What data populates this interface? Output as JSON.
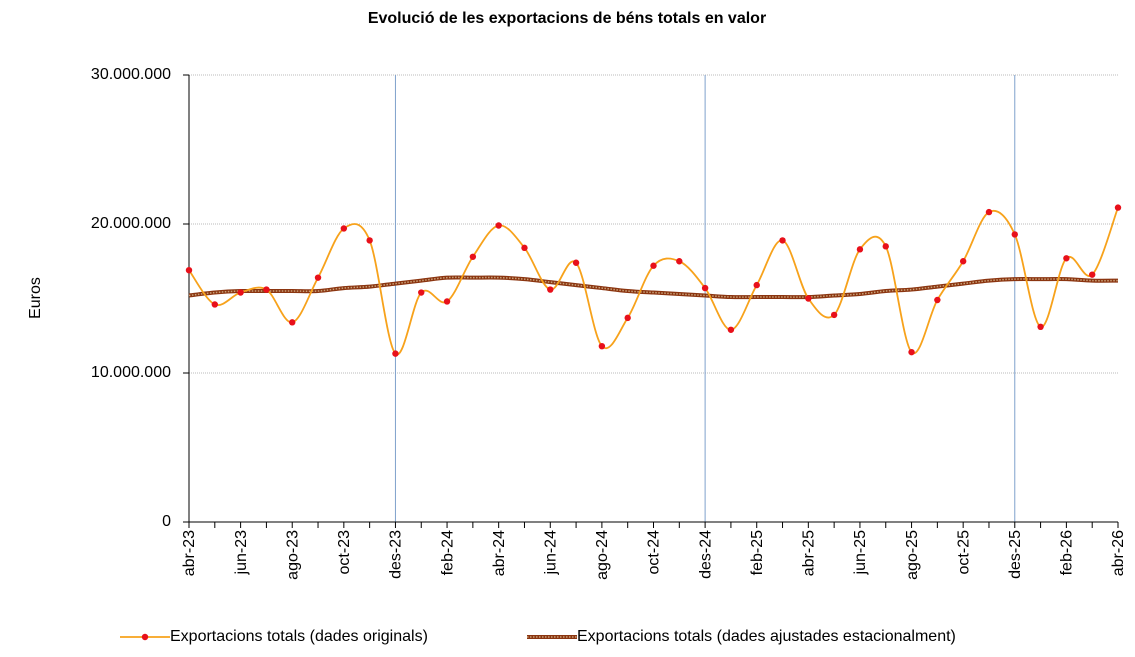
{
  "chart_data": {
    "type": "line",
    "title": "Evolució de les exportacions de béns totals en valor",
    "y_label": "Euros",
    "categories": [
      "abr-23",
      null,
      "jun-23",
      null,
      "ago-23",
      null,
      "oct-23",
      null,
      "des-23",
      null,
      "feb-24",
      null,
      "abr-24",
      null,
      "jun-24",
      null,
      "ago-24",
      null,
      "oct-24",
      null,
      "des-24",
      null,
      "feb-25",
      null,
      "abr-25",
      null,
      "jun-25",
      null,
      "ago-25",
      null,
      "oct-25",
      null,
      "des-25",
      null,
      "feb-26",
      null,
      "abr-26"
    ],
    "series": [
      {
        "name": "Exportacions totals (dades originals)",
        "color": "#f7a21b",
        "marker_color": "#e8101a",
        "values": [
          16900000,
          14600000,
          15400000,
          15600000,
          13400000,
          16400000,
          19700000,
          18900000,
          11300000,
          15400000,
          14800000,
          17800000,
          19900000,
          18400000,
          15600000,
          17400000,
          11800000,
          13700000,
          17200000,
          17500000,
          15700000,
          12900000,
          15900000,
          18900000,
          15000000,
          13900000,
          18300000,
          18500000,
          11400000,
          14900000,
          17500000,
          20800000,
          19300000,
          13100000,
          17700000,
          16600000,
          21100000
        ]
      },
      {
        "name": "Exportacions totals (dades ajustades estacionalment)",
        "color": "#8b3510",
        "dash_color": "#c9a27a",
        "values": [
          15200000,
          15400000,
          15500000,
          15500000,
          15500000,
          15500000,
          15700000,
          15800000,
          16000000,
          16200000,
          16400000,
          16400000,
          16400000,
          16300000,
          16100000,
          15900000,
          15700000,
          15500000,
          15400000,
          15300000,
          15200000,
          15100000,
          15100000,
          15100000,
          15100000,
          15200000,
          15300000,
          15500000,
          15600000,
          15800000,
          16000000,
          16200000,
          16300000,
          16300000,
          16300000,
          16200000,
          16200000
        ]
      }
    ],
    "vertical_lines_at": [
      "des-23",
      "des-24",
      "des-25"
    ],
    "ylim": [
      0,
      30000000
    ],
    "yticks": [
      0,
      {
        "value": 10000000,
        "label": "10.000.000"
      },
      {
        "value": 20000000,
        "label": "20.000.000"
      },
      {
        "value": 30000000,
        "label": "30.000.000"
      }
    ],
    "grid": true,
    "legend": "bottom"
  }
}
